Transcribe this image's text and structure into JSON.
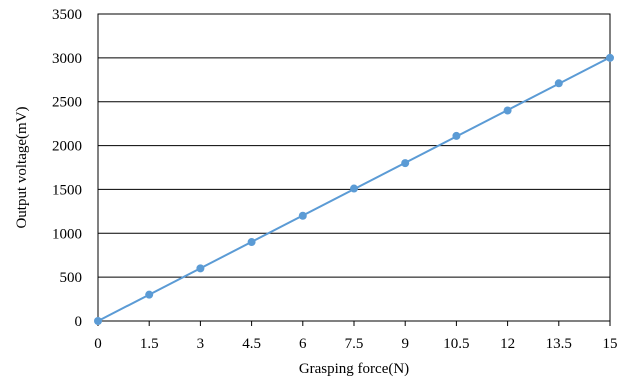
{
  "chart_data": {
    "type": "scatter",
    "title": "",
    "xlabel": "Grasping force(N)",
    "ylabel": "Output voltage(mV)",
    "xlim": [
      0,
      15
    ],
    "ylim": [
      0,
      3500
    ],
    "x_ticks": [
      "0",
      "1.5",
      "3",
      "4.5",
      "6",
      "7.5",
      "9",
      "10.5",
      "12",
      "13.5",
      "15"
    ],
    "y_ticks": [
      "0",
      "500",
      "1000",
      "1500",
      "2000",
      "2500",
      "3000",
      "3500"
    ],
    "grid": "horizontal",
    "legend": "none",
    "trendline": "linear",
    "colors": {
      "series": "#5b9bd5",
      "grid": "#000000"
    },
    "series": [
      {
        "x": [
          0,
          1.5,
          3,
          4.5,
          6,
          7.5,
          9,
          10.5,
          12,
          13.5,
          15
        ],
        "y": [
          0,
          300,
          600,
          900,
          1200,
          1510,
          1800,
          2110,
          2400,
          2710,
          3000
        ]
      }
    ]
  }
}
